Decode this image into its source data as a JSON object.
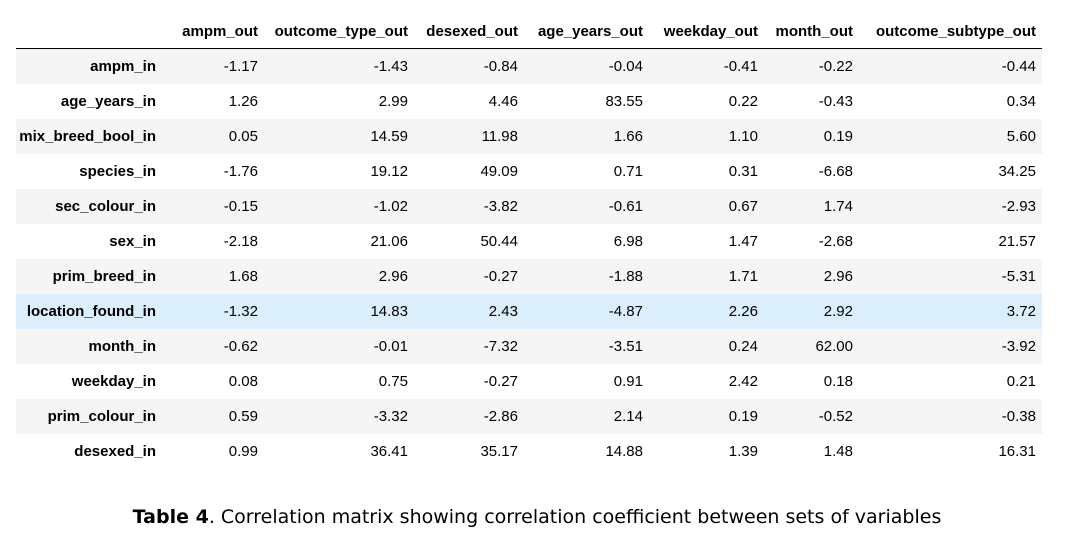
{
  "table": {
    "corner": "",
    "columns": [
      "ampm_out",
      "outcome_type_out",
      "desexed_out",
      "age_years_out",
      "weekday_out",
      "month_out",
      "outcome_subtype_out"
    ],
    "highlighted_row": "location_found_in",
    "rows": [
      {
        "label": "ampm_in",
        "values": [
          "-1.17",
          "-1.43",
          "-0.84",
          "-0.04",
          "-0.41",
          "-0.22",
          "-0.44"
        ]
      },
      {
        "label": "age_years_in",
        "values": [
          "1.26",
          "2.99",
          "4.46",
          "83.55",
          "0.22",
          "-0.43",
          "0.34"
        ]
      },
      {
        "label": "mix_breed_bool_in",
        "values": [
          "0.05",
          "14.59",
          "11.98",
          "1.66",
          "1.10",
          "0.19",
          "5.60"
        ]
      },
      {
        "label": "species_in",
        "values": [
          "-1.76",
          "19.12",
          "49.09",
          "0.71",
          "0.31",
          "-6.68",
          "34.25"
        ]
      },
      {
        "label": "sec_colour_in",
        "values": [
          "-0.15",
          "-1.02",
          "-3.82",
          "-0.61",
          "0.67",
          "1.74",
          "-2.93"
        ]
      },
      {
        "label": "sex_in",
        "values": [
          "-2.18",
          "21.06",
          "50.44",
          "6.98",
          "1.47",
          "-2.68",
          "21.57"
        ]
      },
      {
        "label": "prim_breed_in",
        "values": [
          "1.68",
          "2.96",
          "-0.27",
          "-1.88",
          "1.71",
          "2.96",
          "-5.31"
        ]
      },
      {
        "label": "location_found_in",
        "values": [
          "-1.32",
          "14.83",
          "2.43",
          "-4.87",
          "2.26",
          "2.92",
          "3.72"
        ]
      },
      {
        "label": "month_in",
        "values": [
          "-0.62",
          "-0.01",
          "-7.32",
          "-3.51",
          "0.24",
          "62.00",
          "-3.92"
        ]
      },
      {
        "label": "weekday_in",
        "values": [
          "0.08",
          "0.75",
          "-0.27",
          "0.91",
          "2.42",
          "0.18",
          "0.21"
        ]
      },
      {
        "label": "prim_colour_in",
        "values": [
          "0.59",
          "-3.32",
          "-2.86",
          "2.14",
          "0.19",
          "-0.52",
          "-0.38"
        ]
      },
      {
        "label": "desexed_in",
        "values": [
          "0.99",
          "36.41",
          "35.17",
          "14.88",
          "1.39",
          "1.48",
          "16.31"
        ]
      }
    ]
  },
  "caption": {
    "label": "Table 4",
    "text": ". Correlation matrix showing correlation coefficient between sets of variables"
  }
}
